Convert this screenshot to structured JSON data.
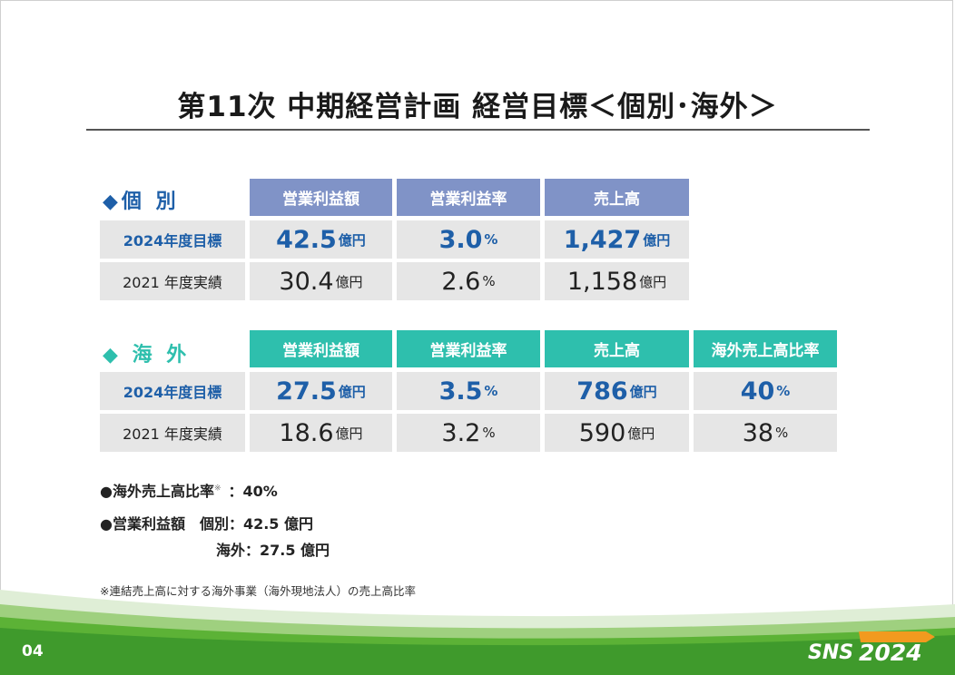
{
  "title": "第11次 中期経営計画 経営目標＜個別･海外＞",
  "individual": {
    "label": "◆個 別",
    "headers": [
      "営業利益額",
      "営業利益率",
      "売上高"
    ],
    "rows": [
      {
        "label": "2024年度目標",
        "cells": [
          {
            "value": "42.5",
            "unit": "億円"
          },
          {
            "value": "3.0",
            "unit": "%"
          },
          {
            "value": "1,427",
            "unit": "億円"
          }
        ]
      },
      {
        "label": "2021 年度実績",
        "cells": [
          {
            "value": "30.4",
            "unit": "億円"
          },
          {
            "value": "2.6",
            "unit": "%"
          },
          {
            "value": "1,158",
            "unit": "億円"
          }
        ]
      }
    ]
  },
  "overseas": {
    "label": "◆ 海 外",
    "headers": [
      "営業利益額",
      "営業利益率",
      "売上高",
      "海外売上高比率"
    ],
    "rows": [
      {
        "label": "2024年度目標",
        "cells": [
          {
            "value": "27.5",
            "unit": "億円"
          },
          {
            "value": "3.5",
            "unit": "%"
          },
          {
            "value": "786",
            "unit": "億円"
          },
          {
            "value": "40",
            "unit": "%"
          }
        ]
      },
      {
        "label": "2021 年度実績",
        "cells": [
          {
            "value": "18.6",
            "unit": "億円"
          },
          {
            "value": "3.2",
            "unit": "%"
          },
          {
            "value": "590",
            "unit": "億円"
          },
          {
            "value": "38",
            "unit": "%"
          }
        ]
      }
    ]
  },
  "notes": {
    "line1_label": "●海外売上高比率",
    "line1_mark": "※",
    "line1_value": "：40%",
    "line2": "●営業利益額　個別：42.5 億円",
    "line3": "海外：27.5 億円",
    "footnote": "※連結売上高に対する海外事業（海外現地法人）の売上高比率"
  },
  "footer": {
    "page_number": "04",
    "logo_text": "SNS2024"
  },
  "colors": {
    "individual_header": "#8093c7",
    "overseas_header": "#2ebfad",
    "target_text": "#1e5fa8",
    "individual_label": "#1e5fa8",
    "overseas_label": "#2ebfad",
    "cell_bg": "#e6e6e6",
    "footer_green": "#3f9a2c"
  }
}
